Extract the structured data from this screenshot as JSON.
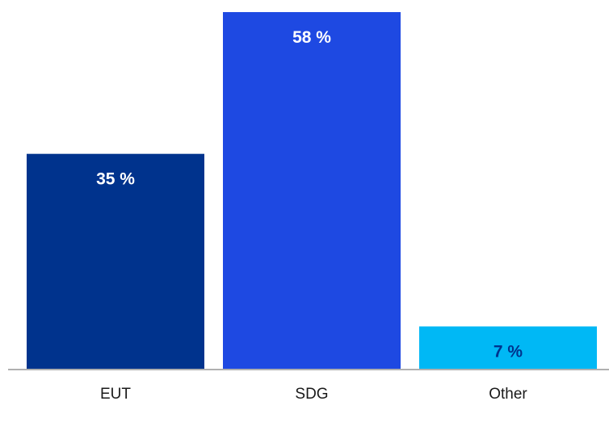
{
  "chart_data": {
    "type": "bar",
    "categories": [
      "EUT",
      "SDG",
      "Other"
    ],
    "values": [
      35,
      58,
      7
    ],
    "value_labels": [
      "35 %",
      "58 %",
      "7 %"
    ],
    "colors": [
      "#00338d",
      "#1e49e2",
      "#00b8f5"
    ],
    "value_label_colors": [
      "#ffffff",
      "#ffffff",
      "#00338d"
    ],
    "ylim": [
      0,
      58
    ],
    "grid": false,
    "legend": "none",
    "axis_color": "#b0b0b0"
  }
}
